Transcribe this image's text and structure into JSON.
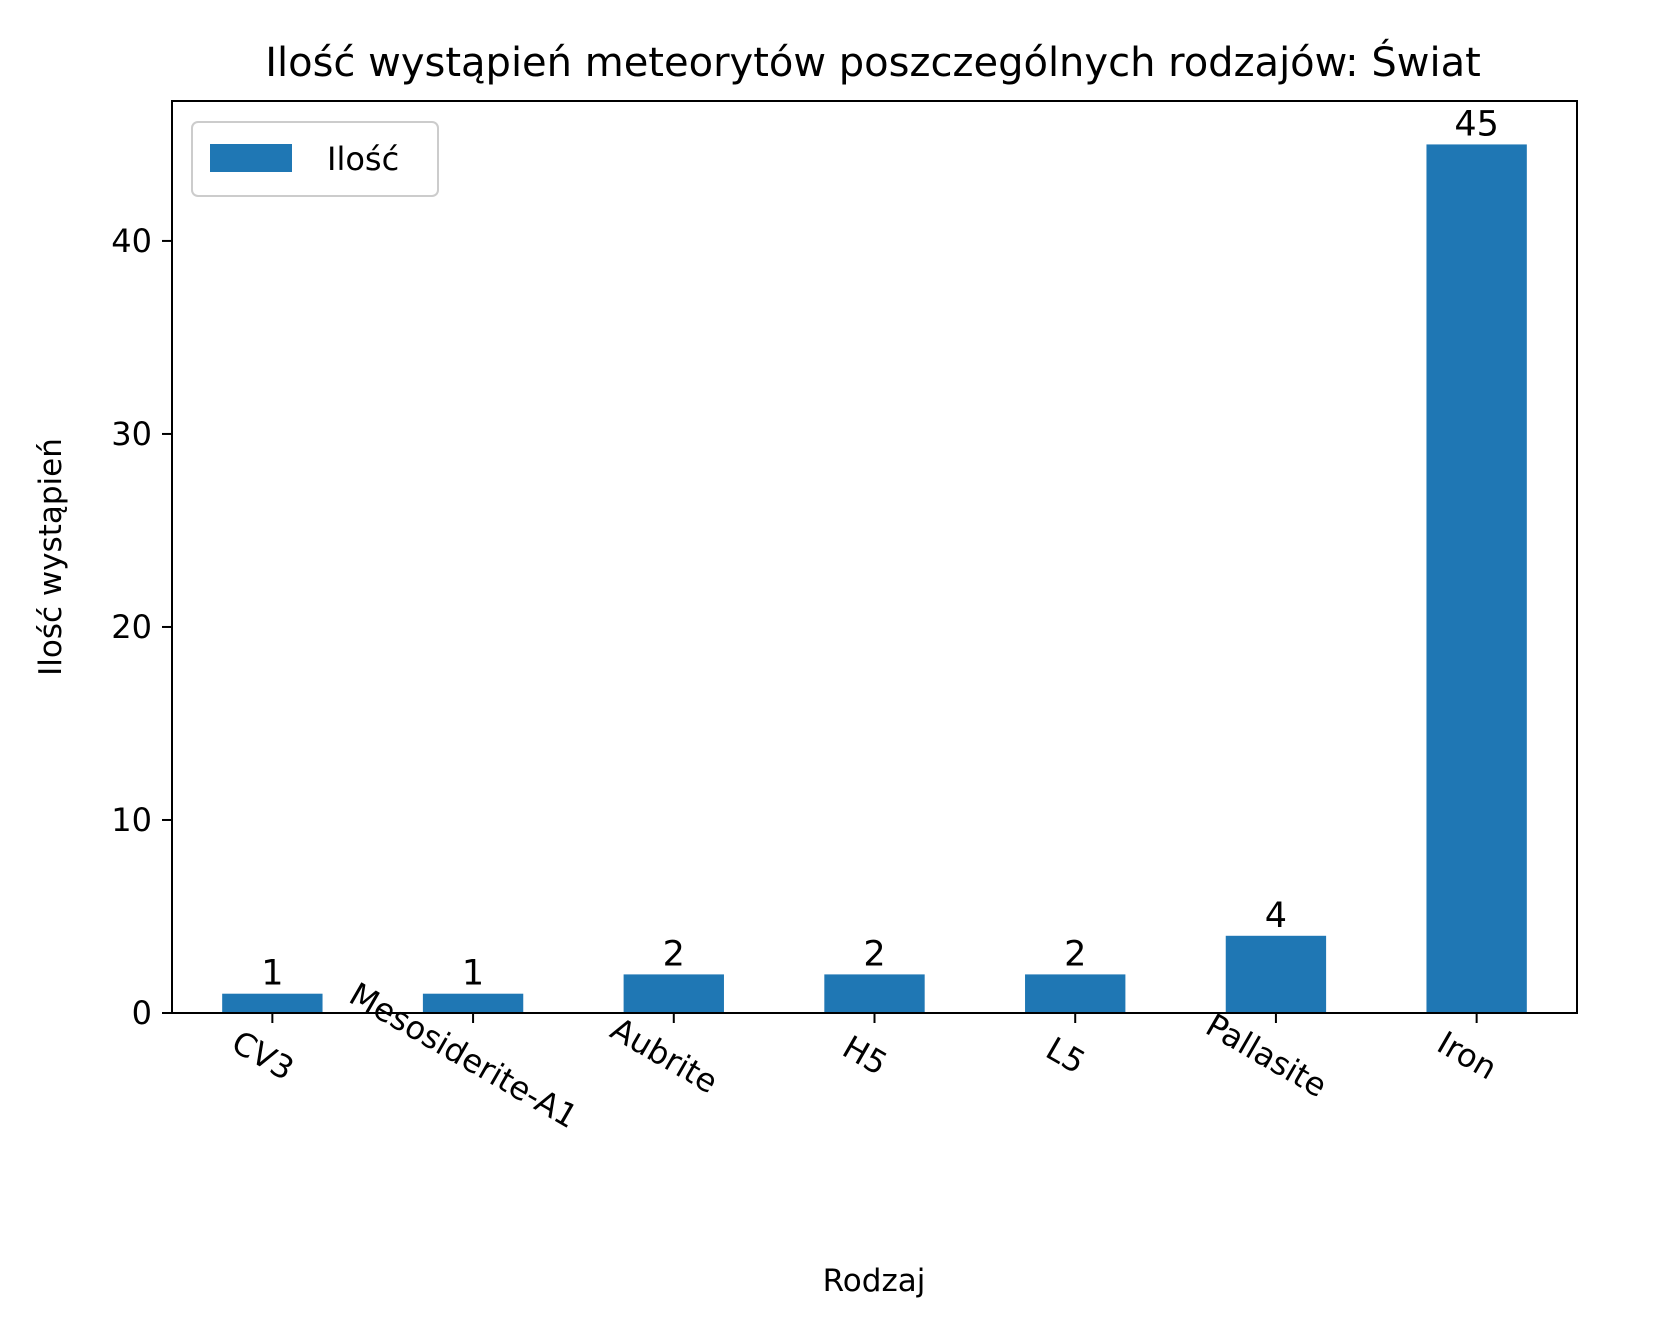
{
  "chart_data": {
    "type": "bar",
    "title": "Ilość wystąpień meteorytów poszczególnych rodzajów: Świat",
    "xlabel": "Rodzaj",
    "ylabel": "Ilość wystąpień",
    "categories": [
      "CV3",
      "Mesosiderite-A1",
      "Aubrite",
      "H5",
      "L5",
      "Pallasite",
      "Iron"
    ],
    "series": [
      {
        "name": "Ilość",
        "values": [
          1,
          1,
          2,
          2,
          2,
          4,
          45
        ],
        "color": "#1f77b4"
      }
    ],
    "ylim": [
      0,
      47.25
    ],
    "yticks": [
      0,
      10,
      20,
      30,
      40
    ],
    "ytick_labels": [
      "0",
      "10",
      "20",
      "30",
      "40"
    ],
    "bar_labels": [
      "1",
      "1",
      "2",
      "2",
      "2",
      "4",
      "45"
    ],
    "legend": {
      "placement": "top-left",
      "labels": [
        "Ilość"
      ]
    },
    "grid": false
  }
}
